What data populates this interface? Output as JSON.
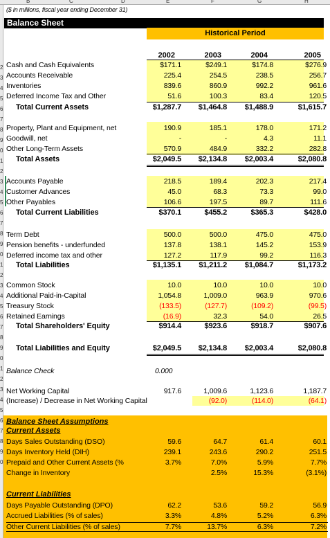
{
  "columns": [
    "B",
    "C",
    "D",
    "E",
    "F",
    "G",
    "H"
  ],
  "row_numbers": [
    "2",
    "3",
    "4",
    "5",
    "6",
    "7",
    "8",
    "9",
    "0",
    "1",
    "2",
    "3",
    "4",
    "5",
    "6",
    "7",
    "8",
    "9",
    "0",
    "1",
    "2",
    "3",
    "4",
    "5",
    "6",
    "7",
    "8",
    "9",
    "0",
    "1",
    "2",
    "3",
    "4",
    "5",
    "6",
    "7",
    "8",
    "9",
    "0"
  ],
  "note": "($ in millions, fiscal year ending December 31)",
  "title": "Balance Sheet",
  "period_header": "Historical Period",
  "years": [
    "2002",
    "2003",
    "2004",
    "2005"
  ],
  "rows": {
    "cash": {
      "label": "Cash and Cash Equivalents",
      "values": [
        "$171.1",
        "$249.1",
        "$174.8",
        "$276.9"
      ]
    },
    "ar": {
      "label": "Accounts Receivable",
      "values": [
        "225.4",
        "254.5",
        "238.5",
        "256.7"
      ]
    },
    "inv": {
      "label": "Inventories",
      "values": [
        "839.6",
        "860.9",
        "992.2",
        "961.6"
      ]
    },
    "dit": {
      "label": "Deferred Income Tax and Other",
      "values": [
        "51.6",
        "100.3",
        "83.4",
        "120.5"
      ]
    },
    "tca": {
      "label": "Total Current Assets",
      "values": [
        "$1,287.7",
        "$1,464.8",
        "$1,488.9",
        "$1,615.7"
      ]
    },
    "ppe": {
      "label": "Property, Plant and Equipment, net",
      "values": [
        "190.9",
        "185.1",
        "178.0",
        "171.2"
      ]
    },
    "gw": {
      "label": "Goodwill, net",
      "values": [
        "-",
        "-",
        "4.3",
        "11.1"
      ]
    },
    "olta": {
      "label": "Other Long-Term Assets",
      "values": [
        "570.9",
        "484.9",
        "332.2",
        "282.8"
      ]
    },
    "ta": {
      "label": "Total Assets",
      "values": [
        "$2,049.5",
        "$2,134.8",
        "$2,003.4",
        "$2,080.8"
      ]
    },
    "ap": {
      "label": "Accounts Payable",
      "values": [
        "218.5",
        "189.4",
        "202.3",
        "217.4"
      ]
    },
    "ca": {
      "label": "Customer Advances",
      "values": [
        "45.0",
        "68.3",
        "73.3",
        "99.0"
      ]
    },
    "op": {
      "label": "Other Payables",
      "values": [
        "106.6",
        "197.5",
        "89.7",
        "111.6"
      ]
    },
    "tcl": {
      "label": "Total Current Liabilities",
      "values": [
        "$370.1",
        "$455.2",
        "$365.3",
        "$428.0"
      ]
    },
    "td": {
      "label": "Term Debt",
      "values": [
        "500.0",
        "500.0",
        "475.0",
        "475.0"
      ]
    },
    "pb": {
      "label": "Pension benefits - underfunded",
      "values": [
        "137.8",
        "138.1",
        "145.2",
        "153.9"
      ]
    },
    "ditl": {
      "label": "Deferred income tax and other",
      "values": [
        "127.2",
        "117.9",
        "99.2",
        "116.3"
      ]
    },
    "tl": {
      "label": "Total Liabilities",
      "values": [
        "$1,135.1",
        "$1,211.2",
        "$1,084.7",
        "$1,173.2"
      ]
    },
    "cs": {
      "label": "Common Stock",
      "values": [
        "10.0",
        "10.0",
        "10.0",
        "10.0"
      ]
    },
    "apic": {
      "label": "Additional Paid-in-Capital",
      "values": [
        "1,054.8",
        "1,009.0",
        "963.9",
        "970.6"
      ]
    },
    "ts": {
      "label": "Treasury Stock",
      "values": [
        "(133.5)",
        "(127.7)",
        "(109.2)",
        "(99.5)"
      ]
    },
    "re": {
      "label": "Retained Earnings",
      "values": [
        "(16.9)",
        "32.3",
        "54.0",
        "26.5"
      ]
    },
    "tse": {
      "label": "Total Shareholders' Equity",
      "values": [
        "$914.4",
        "$923.6",
        "$918.7",
        "$907.6"
      ]
    },
    "tle": {
      "label": "Total Liabilities and Equity",
      "values": [
        "$2,049.5",
        "$2,134.8",
        "$2,003.4",
        "$2,080.8"
      ]
    },
    "bc": {
      "label": "Balance Check",
      "values": [
        "0.000",
        "",
        "",
        ""
      ]
    },
    "nwc": {
      "label": "Net Working Capital",
      "values": [
        "917.6",
        "1,009.6",
        "1,123.6",
        "1,187.7"
      ]
    },
    "inc": {
      "label": "(Increase) / Decrease in Net Working Capital",
      "values": [
        "",
        "(92.0)",
        "(114.0)",
        "(64.1)"
      ]
    },
    "dso": {
      "label": "Days Sales Outstanding (DSO)",
      "values": [
        "59.6",
        "64.7",
        "61.4",
        "60.1"
      ]
    },
    "dih": {
      "label": "Days Inventory Held (DIH)",
      "values": [
        "239.1",
        "243.6",
        "290.2",
        "251.5"
      ]
    },
    "ppo": {
      "label": "Prepaid and Other Current Assets (%",
      "values": [
        "3.7%",
        "7.0%",
        "5.9%",
        "7.7%"
      ]
    },
    "cinv": {
      "label": "Change in Inventory",
      "values": [
        "",
        "2.5%",
        "15.3%",
        "(3.1%)"
      ]
    },
    "dpo": {
      "label": "Days Payable Outstanding (DPO)",
      "values": [
        "62.2",
        "53.6",
        "59.2",
        "56.9"
      ]
    },
    "acl": {
      "label": "Accrued Liabilities (% of sales)",
      "values": [
        "3.3%",
        "4.8%",
        "5.2%",
        "6.3%"
      ]
    },
    "ocl": {
      "label": "Other Current Liabilities (% of sales)",
      "values": [
        "7.7%",
        "13.7%",
        "6.3%",
        "7.2%"
      ]
    }
  },
  "assumptions_header": "Balance Sheet Assumptions",
  "current_assets_header": "Current Assets",
  "current_liabilities_header": "Current Liabilities",
  "colors": {
    "accent_orange": "#ffc000",
    "input_yellow": "#ffff99",
    "negative_red": "#ff0000"
  }
}
